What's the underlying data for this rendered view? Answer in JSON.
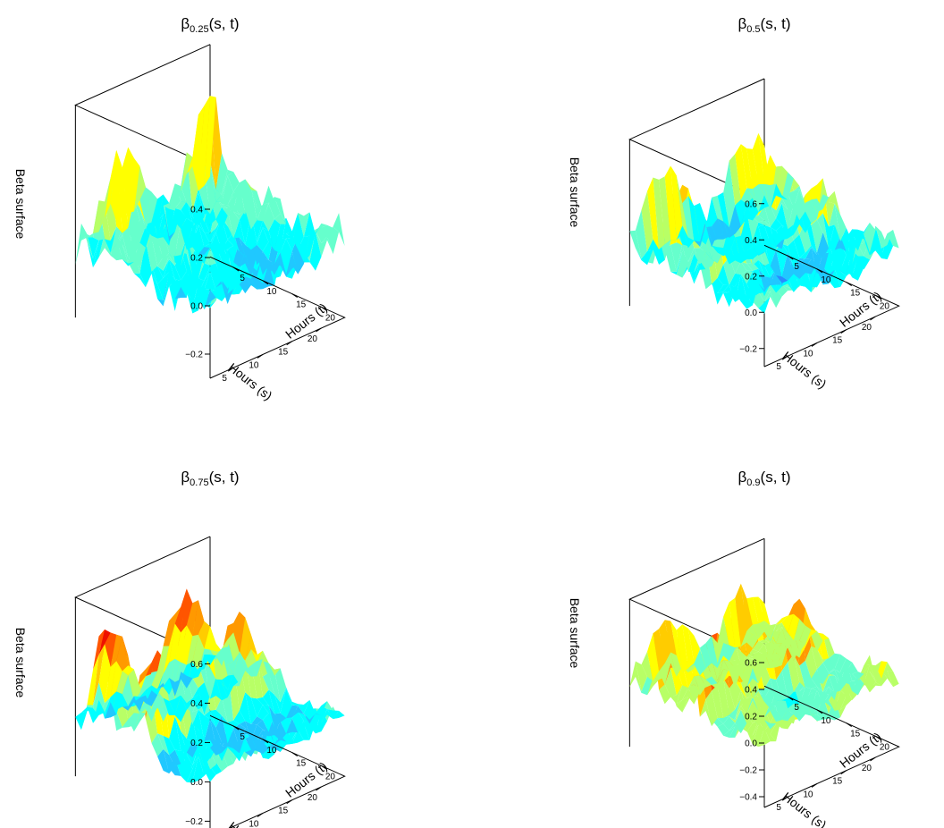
{
  "figure": {
    "palette": [
      "#0000c8",
      "#1a4df0",
      "#2a8bff",
      "#20c8ff",
      "#00ffff",
      "#66ffcc",
      "#b8ff66",
      "#ffff00",
      "#ffcc00",
      "#ff9900",
      "#ff5500",
      "#ee1100",
      "#cc0000",
      "#800000"
    ]
  },
  "chart_data": [
    {
      "type": "surface3d",
      "panel": "top-left",
      "title_main": "β",
      "title_sub": "0.25",
      "title_args": "(s, t)",
      "zlabel": "Beta surface",
      "xlabel": "Hours (s)",
      "ylabel": "Hours (t)",
      "z_ticks": [
        "−0.2",
        "0.0",
        "0.2",
        "0.4"
      ],
      "zlim": [
        -0.3,
        0.58
      ],
      "s_ticks": [
        "5",
        "10",
        "15",
        "20"
      ],
      "t_ticks": [
        "5",
        "10",
        "15",
        "20"
      ],
      "s_range": [
        1,
        24
      ],
      "t_range": [
        1,
        24
      ],
      "seed": 11,
      "amplitude": 0.15,
      "ridges": [
        {
          "t": 23,
          "height": 0.32,
          "width": 0.8
        },
        {
          "t": 5,
          "height": -0.08,
          "width": 1.5
        }
      ]
    },
    {
      "type": "surface3d",
      "panel": "top-right",
      "title_main": "β",
      "title_sub": "0.5",
      "title_args": "(s, t)",
      "zlabel": "Beta surface",
      "xlabel": "Hours (s)",
      "ylabel": "Hours (t)",
      "z_ticks": [
        "−0.2",
        "0.0",
        "0.2",
        "0.4",
        "0.6"
      ],
      "zlim": [
        -0.3,
        0.62
      ],
      "s_ticks": [
        "5",
        "10",
        "15",
        "20"
      ],
      "t_ticks": [
        "5",
        "10",
        "15",
        "20"
      ],
      "s_range": [
        1,
        24
      ],
      "t_range": [
        1,
        24
      ],
      "seed": 23,
      "amplitude": 0.15,
      "ridges": [
        {
          "t": 12,
          "height": 0.3,
          "width": 1.0
        },
        {
          "t": 19,
          "height": 0.28,
          "width": 0.9
        },
        {
          "t": 24,
          "height": 0.35,
          "width": 0.7
        }
      ]
    },
    {
      "type": "surface3d",
      "panel": "bottom-left",
      "title_main": "β",
      "title_sub": "0.75",
      "title_args": "(s, t)",
      "zlabel": "Beta surface",
      "xlabel": "Hours (s)",
      "ylabel": "Hours (t)",
      "z_ticks": [
        "−0.2",
        "0.0",
        "0.2",
        "0.4",
        "0.6"
      ],
      "zlim": [
        -0.28,
        0.63
      ],
      "s_ticks": [
        "5",
        "10",
        "15",
        "20"
      ],
      "t_ticks": [
        "5",
        "10",
        "15",
        "20"
      ],
      "s_range": [
        1,
        24
      ],
      "t_range": [
        1,
        24
      ],
      "seed": 37,
      "amplitude": 0.12,
      "ridges": [
        {
          "t": 13,
          "height": 0.45,
          "width": 1.6
        },
        {
          "t": 20,
          "height": 0.5,
          "width": 1.8
        }
      ]
    },
    {
      "type": "surface3d",
      "panel": "bottom-right",
      "title_main": "β",
      "title_sub": "0.9",
      "title_args": "(s, t)",
      "zlabel": "Beta surface",
      "xlabel": "Hours (s)",
      "ylabel": "Hours (t)",
      "z_ticks": [
        "−0.4",
        "−0.2",
        "0.0",
        "0.2",
        "0.4",
        "0.6"
      ],
      "zlim": [
        -0.48,
        0.62
      ],
      "s_ticks": [
        "5",
        "10",
        "15",
        "20"
      ],
      "t_ticks": [
        "5",
        "10",
        "15",
        "20"
      ],
      "s_range": [
        1,
        24
      ],
      "t_range": [
        1,
        24
      ],
      "seed": 53,
      "amplitude": 0.18,
      "ridges": [
        {
          "t": 13,
          "height": 0.45,
          "width": 0.8
        },
        {
          "t": 20,
          "height": 0.38,
          "width": 0.8
        },
        {
          "t": 24,
          "height": 0.32,
          "width": 0.7
        }
      ]
    }
  ]
}
